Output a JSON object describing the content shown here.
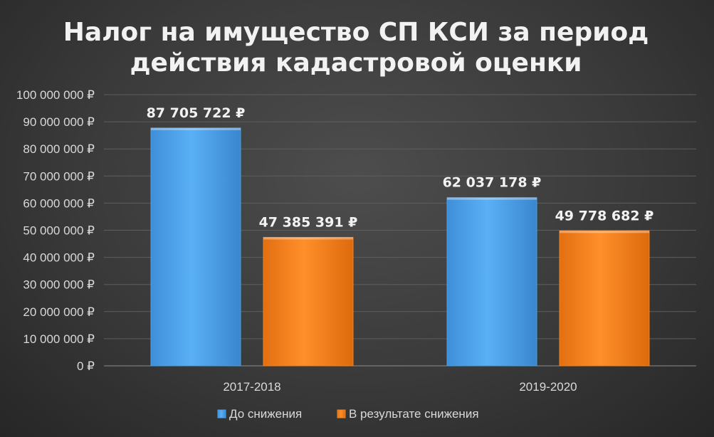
{
  "chart_data": {
    "type": "bar",
    "title": [
      "Налог на имущество СП КСИ за период",
      "действия кадастровой оценки"
    ],
    "categories": [
      "2017-2018",
      "2019-2020"
    ],
    "series": [
      {
        "name": "До снижения",
        "values": [
          87705722,
          62037178
        ],
        "labels": [
          "87 705 722 ₽",
          "62 037 178 ₽"
        ],
        "color": "#4a9fe8"
      },
      {
        "name": "В результате снижения",
        "values": [
          47385391,
          49778682
        ],
        "labels": [
          "47 385 391 ₽",
          "49 778 682 ₽"
        ],
        "color": "#f5821f"
      }
    ],
    "ylim": [
      0,
      100000000
    ],
    "yticks": [
      0,
      10000000,
      20000000,
      30000000,
      40000000,
      50000000,
      60000000,
      70000000,
      80000000,
      90000000,
      100000000
    ],
    "ytick_labels": [
      "0 ₽",
      "10 000 000 ₽",
      "20 000 000 ₽",
      "30 000 000 ₽",
      "40 000 000 ₽",
      "50 000 000 ₽",
      "60 000 000 ₽",
      "70 000 000 ₽",
      "80 000 000 ₽",
      "90 000 000 ₽",
      "100 000 000 ₽"
    ],
    "xlabel": "",
    "ylabel": "",
    "grid": true,
    "legend": "bottom-center"
  }
}
